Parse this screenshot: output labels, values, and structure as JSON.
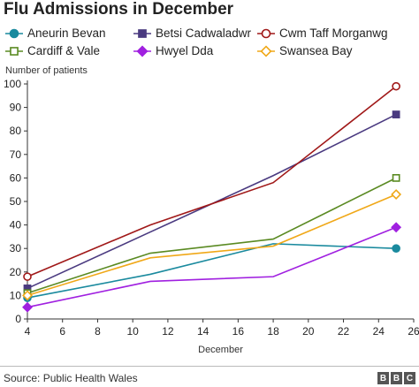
{
  "header": {
    "title": "Flu Admissions in December"
  },
  "footer": {
    "source": "Source: Public Health Wales",
    "logo": [
      "B",
      "B",
      "C"
    ]
  },
  "chart_data": {
    "type": "line",
    "title": "Flu Admissions in December",
    "xlabel": "December",
    "ylabel": "Number of patients",
    "xlim": [
      4,
      26
    ],
    "ylim": [
      0,
      100
    ],
    "xticks": [
      4,
      6,
      8,
      10,
      12,
      14,
      16,
      18,
      20,
      22,
      24,
      26
    ],
    "yticks": [
      0,
      10,
      20,
      30,
      40,
      50,
      60,
      70,
      80,
      90,
      100
    ],
    "grid": false,
    "legend_position": "top",
    "series": [
      {
        "name": "Aneurin Bevan",
        "color": "#1a8a9e",
        "marker": "circle-filled",
        "x": [
          4,
          11,
          18,
          25
        ],
        "values": [
          9,
          19,
          32,
          30
        ]
      },
      {
        "name": "Betsi Cadwaladwr",
        "color": "#4a3a80",
        "marker": "square-filled",
        "x": [
          4,
          11,
          18,
          25
        ],
        "values": [
          13,
          37,
          61,
          87
        ]
      },
      {
        "name": "Cwm Taff Morganwg",
        "color": "#a01818",
        "marker": "circle-open",
        "x": [
          4,
          11,
          18,
          25
        ],
        "values": [
          18,
          40,
          58,
          99
        ]
      },
      {
        "name": "Cardiff & Vale",
        "color": "#5a8a22",
        "marker": "square-open",
        "x": [
          4,
          11,
          18,
          25
        ],
        "values": [
          11,
          28,
          34,
          60
        ]
      },
      {
        "name": "Hwyel Dda",
        "color": "#a020e0",
        "marker": "diamond-filled",
        "x": [
          4,
          11,
          18,
          25
        ],
        "values": [
          5,
          16,
          18,
          39
        ]
      },
      {
        "name": "Swansea Bay",
        "color": "#f0a818",
        "marker": "diamond-open",
        "x": [
          4,
          11,
          18,
          25
        ],
        "values": [
          10,
          26,
          31,
          53
        ]
      }
    ]
  }
}
